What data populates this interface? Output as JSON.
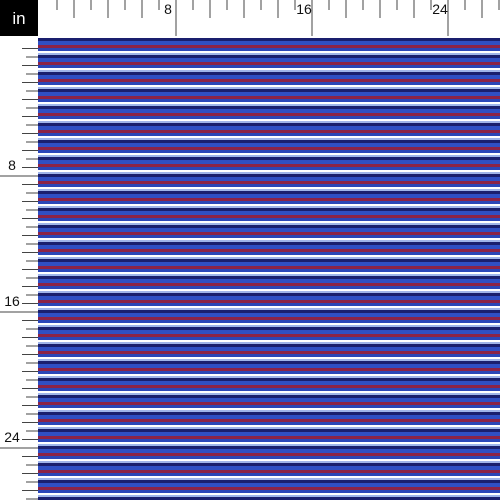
{
  "unit": "in",
  "rulers": {
    "top": {
      "labels": [
        8,
        16,
        24
      ]
    },
    "left": {
      "labels": [
        8,
        16,
        24
      ]
    }
  }
}
